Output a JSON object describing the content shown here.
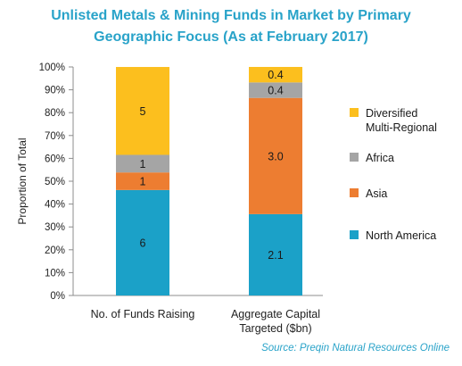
{
  "chart_data": {
    "type": "bar",
    "stacked": true,
    "title_lines": [
      "Unlisted Metals & Mining Funds in Market by Primary",
      "Geographic Focus (As at February 2017)"
    ],
    "ylabel": "Proportion of Total",
    "ylim": [
      0,
      100
    ],
    "yticks": [
      "0%",
      "10%",
      "20%",
      "30%",
      "40%",
      "50%",
      "60%",
      "70%",
      "80%",
      "90%",
      "100%"
    ],
    "categories": [
      [
        "No. of Funds Raising"
      ],
      [
        "Aggregate Capital",
        "Targeted ($bn)"
      ]
    ],
    "series": [
      {
        "name": "North America",
        "color": "#1ba1c8",
        "values": [
          6,
          2.1
        ],
        "labels": [
          "6",
          "2.1"
        ],
        "percent": [
          46.15,
          35.6
        ]
      },
      {
        "name": "Asia",
        "color": "#ed7d31",
        "values": [
          1,
          3.0
        ],
        "labels": [
          "1",
          "3.0"
        ],
        "percent": [
          7.69,
          50.85
        ]
      },
      {
        "name": "Africa",
        "color": "#a5a5a5",
        "values": [
          1,
          0.4
        ],
        "labels": [
          "1",
          "0.4"
        ],
        "percent": [
          7.69,
          6.78
        ]
      },
      {
        "name": "Diversified Multi-Regional",
        "legend_lines": [
          "Diversified",
          "Multi-Regional"
        ],
        "color": "#fcbf1e",
        "values": [
          5,
          0.4
        ],
        "labels": [
          "5",
          "0.4"
        ],
        "percent": [
          38.46,
          6.78
        ]
      }
    ],
    "legend_position": "right",
    "grid": false
  },
  "source": "Source: Preqin Natural Resources Online"
}
